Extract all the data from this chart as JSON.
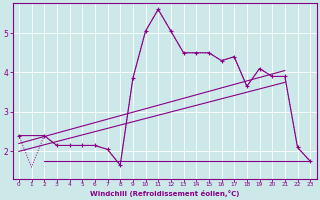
{
  "xlabel": "Windchill (Refroidissement éolien,°C)",
  "background_color": "#cde8e8",
  "grid_color": "#b8d8d8",
  "line_color": "#880088",
  "xlim": [
    -0.5,
    23.5
  ],
  "ylim": [
    1.3,
    5.75
  ],
  "xticks": [
    0,
    1,
    2,
    3,
    4,
    5,
    6,
    7,
    8,
    9,
    10,
    11,
    12,
    13,
    14,
    15,
    16,
    17,
    18,
    19,
    20,
    21,
    22,
    23
  ],
  "yticks": [
    2,
    3,
    4,
    5
  ],
  "series_dotted": {
    "x": [
      0,
      1,
      2,
      3,
      4,
      5,
      6,
      7,
      8,
      9,
      10,
      11,
      12,
      13,
      14,
      15,
      16,
      17,
      18,
      19,
      20,
      21,
      22,
      23
    ],
    "y": [
      2.4,
      1.6,
      2.4,
      2.15,
      2.15,
      2.15,
      2.15,
      2.05,
      1.65,
      3.85,
      5.05,
      5.6,
      5.05,
      4.5,
      4.5,
      4.5,
      4.3,
      4.4,
      3.65,
      4.1,
      3.9,
      3.9,
      2.1,
      1.75
    ]
  },
  "series_markers": {
    "x": [
      0,
      2,
      3,
      4,
      5,
      6,
      7,
      8,
      9,
      10,
      11,
      12,
      13,
      14,
      15,
      16,
      17,
      18,
      19,
      20,
      21,
      22,
      23
    ],
    "y": [
      2.4,
      2.4,
      2.15,
      2.15,
      2.15,
      2.15,
      2.05,
      1.65,
      3.85,
      5.05,
      5.6,
      5.05,
      4.5,
      4.5,
      4.5,
      4.3,
      4.4,
      3.65,
      4.1,
      3.9,
      3.9,
      2.1,
      1.75
    ]
  },
  "series_flat": {
    "x": [
      2,
      3,
      4,
      5,
      6,
      7,
      8,
      9,
      14,
      15,
      16,
      17,
      18,
      19,
      20,
      21,
      22,
      23
    ],
    "y": [
      1.75,
      1.75,
      1.75,
      1.75,
      1.75,
      1.75,
      1.75,
      1.75,
      1.75,
      1.75,
      1.75,
      1.75,
      1.75,
      1.75,
      1.75,
      1.75,
      1.75,
      1.75
    ]
  },
  "trend1": {
    "x": [
      0,
      21
    ],
    "y": [
      2.2,
      4.05
    ]
  },
  "trend2": {
    "x": [
      0,
      21
    ],
    "y": [
      2.0,
      3.75
    ]
  }
}
